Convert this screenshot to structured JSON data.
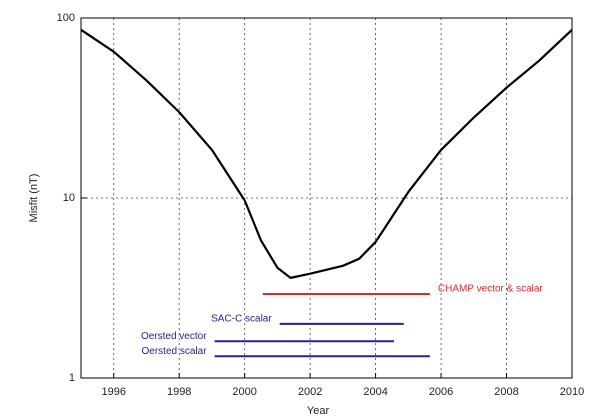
{
  "chart_data": {
    "type": "line",
    "xlabel": "Year",
    "ylabel": "Misfit (nT)",
    "x": [
      1995,
      1996,
      1997,
      1998,
      1999,
      2000,
      2000.5,
      2001,
      2001.4,
      2002,
      2003,
      2003.5,
      2004,
      2005,
      2006,
      2007,
      2008,
      2009,
      2010
    ],
    "series": [
      {
        "color": "#000000",
        "values": [
          86,
          65,
          45,
          30,
          18.5,
          9.7,
          5.8,
          4.1,
          3.6,
          3.8,
          4.2,
          4.6,
          5.7,
          10.8,
          18.5,
          28,
          41,
          58,
          86
        ]
      }
    ],
    "spans": [
      {
        "name": "CHAMP vector & scalar",
        "color": "#e0262e",
        "start": 2000.55,
        "end": 2005.66,
        "value": 2.93
      },
      {
        "name": "SAC-C scalar",
        "color": "#23238e",
        "start": 2001.07,
        "end": 2004.86,
        "value": 2.0
      },
      {
        "name": "Oersted vector",
        "color": "#23238e",
        "start": 1999.08,
        "end": 2004.56,
        "value": 1.6
      },
      {
        "name": "Oersted scalar",
        "color": "#23238e",
        "start": 1999.08,
        "end": 2005.66,
        "value": 1.32
      }
    ],
    "xlim": [
      1995,
      2010
    ],
    "xticks": [
      1996,
      1998,
      2000,
      2002,
      2004,
      2006,
      2008,
      2010
    ],
    "ylim": [
      1,
      100
    ],
    "yticks": [
      1,
      10,
      100
    ],
    "ylog": true,
    "grid": true
  }
}
